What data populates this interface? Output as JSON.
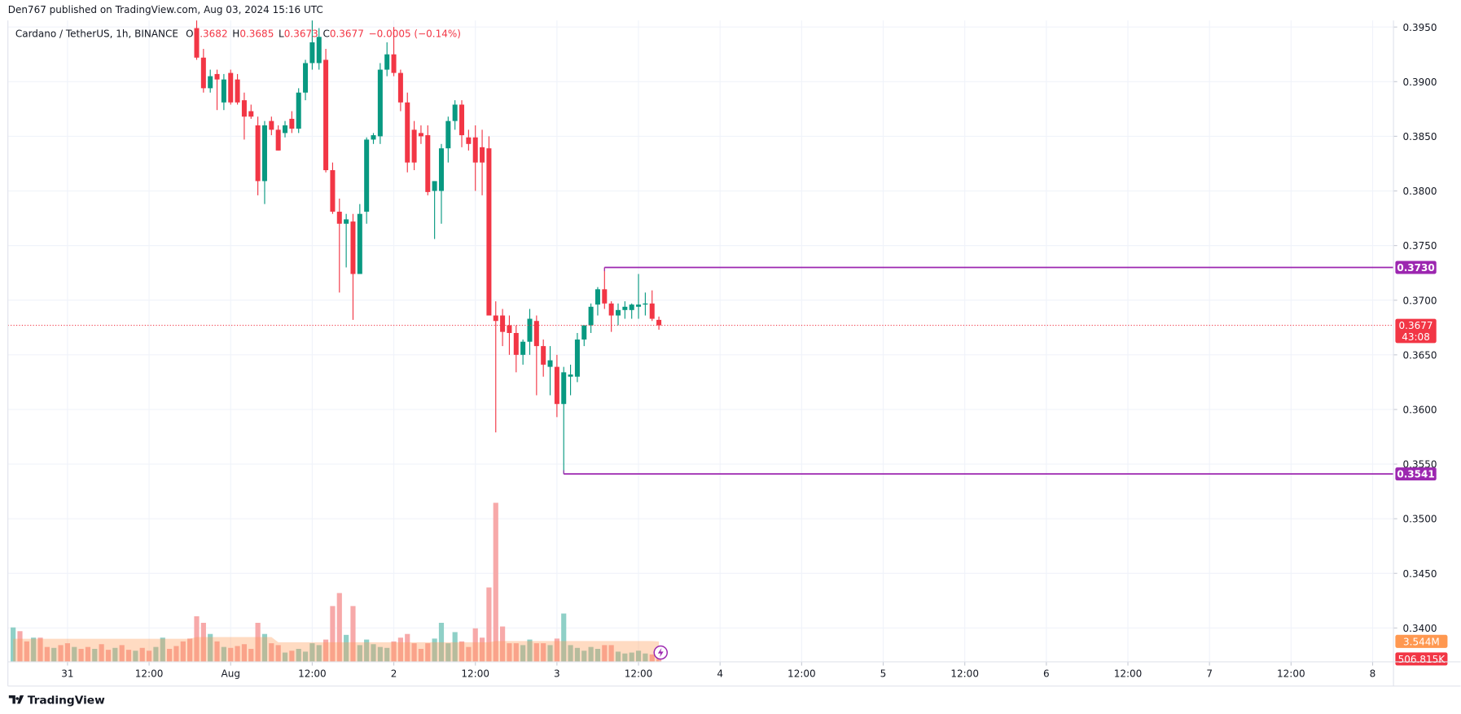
{
  "chart_data": {
    "type": "candlestick",
    "publisher": "Den767 published on TradingView.com, Aug 03, 2024 15:16 UTC",
    "symbol": "Cardano / TetherUS, 1h, BINANCE",
    "ohlc_legend": [
      {
        "key": "O",
        "value": "0.3682"
      },
      {
        "key": "H",
        "value": "0.3685"
      },
      {
        "key": "L",
        "value": "0.3673"
      },
      {
        "key": "C",
        "value": "0.3677"
      }
    ],
    "change": "−0.0005 (−0.14%)",
    "brand": "TradingView",
    "up_color": "#089981",
    "down_color": "#f23645",
    "grid": true,
    "xlim": [
      -8.77,
      195.07
    ],
    "xticks": [
      {
        "value": 0,
        "label": "31"
      },
      {
        "value": 12,
        "label": "12:00"
      },
      {
        "value": 24,
        "label": "Aug"
      },
      {
        "value": 36,
        "label": "12:00"
      },
      {
        "value": 48,
        "label": "2"
      },
      {
        "value": 60,
        "label": "12:00"
      },
      {
        "value": 72,
        "label": "3"
      },
      {
        "value": 84,
        "label": "12:00"
      },
      {
        "value": 96,
        "label": "4"
      },
      {
        "value": 108,
        "label": "12:00"
      },
      {
        "value": 120,
        "label": "5"
      },
      {
        "value": 132,
        "label": "12:00"
      },
      {
        "value": 144,
        "label": "6"
      },
      {
        "value": 156,
        "label": "12:00"
      },
      {
        "value": 168,
        "label": "7"
      },
      {
        "value": 180,
        "label": "12:00"
      },
      {
        "value": 192,
        "label": "8"
      }
    ],
    "ylim": [
      0.3369,
      0.3956
    ],
    "yticks": [
      {
        "value": 0.395,
        "label": "0.3950"
      },
      {
        "value": 0.39,
        "label": "0.3900"
      },
      {
        "value": 0.385,
        "label": "0.3850"
      },
      {
        "value": 0.38,
        "label": "0.3800"
      },
      {
        "value": 0.375,
        "label": "0.3750"
      },
      {
        "value": 0.37,
        "label": "0.3700"
      },
      {
        "value": 0.365,
        "label": "0.3650"
      },
      {
        "value": 0.36,
        "label": "0.3600"
      },
      {
        "value": 0.355,
        "label": "0.3550"
      },
      {
        "value": 0.35,
        "label": "0.3500"
      },
      {
        "value": 0.345,
        "label": "0.3450"
      },
      {
        "value": 0.34,
        "label": "0.3400"
      }
    ],
    "x": [
      19,
      20,
      21,
      22,
      23,
      24,
      25,
      26,
      27,
      28,
      29,
      30,
      31,
      32,
      33,
      34,
      35,
      36,
      37,
      38,
      39,
      40,
      41,
      42,
      43,
      44,
      45,
      46,
      47,
      48,
      49,
      50,
      51,
      52,
      53,
      54,
      55,
      56,
      57,
      58,
      59,
      60,
      61,
      62,
      63,
      64,
      65,
      66,
      67,
      68,
      69,
      70,
      71,
      72,
      73,
      74,
      75,
      76,
      77,
      78,
      79,
      80,
      81,
      82,
      83,
      84,
      85,
      86,
      87
    ],
    "open": [
      0.3949,
      0.3922,
      0.3894,
      0.3907,
      0.3881,
      0.3908,
      0.3902,
      0.3883,
      0.3873,
      0.386,
      0.3809,
      0.3864,
      0.3856,
      0.3853,
      0.3866,
      0.3857,
      0.389,
      0.3917,
      0.3917,
      0.392,
      0.3819,
      0.3781,
      0.377,
      0.3772,
      0.3724,
      0.3781,
      0.3847,
      0.385,
      0.3911,
      0.3925,
      0.3908,
      0.3881,
      0.3856,
      0.3853,
      0.3851,
      0.38,
      0.38,
      0.3839,
      0.3864,
      0.3879,
      0.3849,
      0.3849,
      0.384,
      0.3839,
      0.3686,
      0.3686,
      0.3677,
      0.367,
      0.365,
      0.3662,
      0.3681,
      0.3658,
      0.3639,
      0.3639,
      0.3605,
      0.363,
      0.363,
      0.3664,
      0.3677,
      0.3696,
      0.371,
      0.3697,
      0.3686,
      0.3691,
      0.3691,
      0.3694,
      0.3696,
      0.3697,
      0.3682
    ],
    "high": [
      0.3956,
      0.393,
      0.3911,
      0.3911,
      0.3907,
      0.3911,
      0.3907,
      0.389,
      0.3879,
      0.3868,
      0.3864,
      0.3868,
      0.386,
      0.3864,
      0.3873,
      0.3894,
      0.392,
      0.3956,
      0.3949,
      0.393,
      0.3826,
      0.3793,
      0.3779,
      0.3779,
      0.3788,
      0.3849,
      0.3853,
      0.3917,
      0.3936,
      0.395,
      0.3911,
      0.389,
      0.3864,
      0.386,
      0.386,
      0.3809,
      0.3843,
      0.3868,
      0.3883,
      0.3883,
      0.3856,
      0.386,
      0.3856,
      0.385,
      0.3699,
      0.3692,
      0.3686,
      0.3677,
      0.3664,
      0.3692,
      0.3686,
      0.3664,
      0.3658,
      0.365,
      0.3639,
      0.3641,
      0.367,
      0.3677,
      0.3697,
      0.3712,
      0.373,
      0.3699,
      0.3697,
      0.3699,
      0.3697,
      0.3724,
      0.3707,
      0.3709,
      0.3685
    ],
    "low": [
      0.392,
      0.389,
      0.389,
      0.3874,
      0.3874,
      0.3879,
      0.3879,
      0.3847,
      0.3866,
      0.3796,
      0.3788,
      0.3851,
      0.3837,
      0.3849,
      0.3853,
      0.3853,
      0.3883,
      0.3911,
      0.3911,
      0.3817,
      0.3779,
      0.3707,
      0.373,
      0.3682,
      0.3724,
      0.377,
      0.3843,
      0.3843,
      0.3905,
      0.3905,
      0.3873,
      0.3817,
      0.3819,
      0.3843,
      0.3796,
      0.3756,
      0.377,
      0.3826,
      0.3856,
      0.384,
      0.3837,
      0.38,
      0.3796,
      0.3686,
      0.3579,
      0.3658,
      0.365,
      0.3634,
      0.3641,
      0.365,
      0.3613,
      0.363,
      0.3613,
      0.3593,
      0.3541,
      0.3613,
      0.3625,
      0.3658,
      0.367,
      0.3686,
      0.3692,
      0.3671,
      0.3677,
      0.3683,
      0.3683,
      0.3683,
      0.3686,
      0.3681,
      0.3673
    ],
    "close": [
      0.3922,
      0.3894,
      0.3905,
      0.3902,
      0.3902,
      0.3881,
      0.3881,
      0.3868,
      0.3868,
      0.3809,
      0.386,
      0.3856,
      0.3837,
      0.386,
      0.3857,
      0.389,
      0.3917,
      0.3936,
      0.3941,
      0.3819,
      0.3781,
      0.377,
      0.3774,
      0.3724,
      0.3779,
      0.3847,
      0.3851,
      0.3911,
      0.3925,
      0.3908,
      0.3881,
      0.3826,
      0.3826,
      0.385,
      0.3799,
      0.3809,
      0.3839,
      0.3864,
      0.3879,
      0.3851,
      0.3843,
      0.3826,
      0.3826,
      0.3686,
      0.3681,
      0.3671,
      0.367,
      0.365,
      0.3662,
      0.3683,
      0.3658,
      0.3641,
      0.3645,
      0.3605,
      0.3634,
      0.3632,
      0.3664,
      0.3677,
      0.3694,
      0.371,
      0.3697,
      0.3686,
      0.3691,
      0.3694,
      0.3696,
      0.3696,
      0.3697,
      0.3683,
      0.3677
    ],
    "levels": [
      {
        "value": 0.373,
        "label": "0.3730",
        "from_x": 79,
        "color": "#9c27b0"
      },
      {
        "value": 0.3541,
        "label": "0.3541",
        "from_x": 73,
        "color": "#9c27b0"
      }
    ],
    "last_price": {
      "value": 0.3677,
      "label": "0.3677",
      "countdown": "43:08",
      "color": "#f23645"
    },
    "volume": {
      "ylim": [
        0,
        111000000
      ],
      "x": [
        -8,
        -7,
        -6,
        -5,
        -4,
        -3,
        -2,
        -1,
        0,
        1,
        2,
        3,
        4,
        5,
        6,
        7,
        8,
        9,
        10,
        11,
        12,
        13,
        14,
        15,
        16,
        17,
        18,
        19,
        20,
        21,
        22,
        23,
        24,
        25,
        26,
        27,
        28,
        29,
        30,
        31,
        32,
        33,
        34,
        35,
        36,
        37,
        38,
        39,
        40,
        41,
        42,
        43,
        44,
        45,
        46,
        47,
        48,
        49,
        50,
        51,
        52,
        53,
        54,
        55,
        56,
        57,
        58,
        59,
        60,
        61,
        62,
        63,
        64,
        65,
        66,
        67,
        68,
        69,
        70,
        71,
        72,
        73,
        74,
        75,
        76,
        77,
        78,
        79,
        80,
        81,
        82,
        83,
        84,
        85,
        86,
        87
      ],
      "values": [
        5960000,
        5310000,
        3540000,
        4190000,
        4190000,
        2580000,
        2420000,
        2900000,
        3220000,
        2580000,
        2250000,
        2580000,
        2250000,
        3060000,
        2090000,
        2420000,
        2900000,
        2090000,
        1930000,
        2420000,
        1930000,
        2580000,
        4190000,
        2250000,
        2740000,
        3540000,
        4030000,
        7890000,
        6760000,
        4830000,
        3540000,
        2580000,
        2420000,
        2740000,
        3060000,
        2250000,
        6760000,
        4830000,
        3220000,
        2900000,
        1610000,
        1930000,
        2250000,
        1770000,
        3220000,
        2900000,
        3860000,
        9660000,
        11910000,
        4670000,
        9660000,
        2900000,
        3860000,
        3060000,
        2580000,
        2420000,
        3540000,
        4190000,
        4830000,
        3220000,
        2250000,
        3220000,
        4030000,
        6760000,
        3220000,
        5150000,
        3540000,
        2580000,
        5800000,
        4190000,
        12880000,
        27530000,
        6120000,
        3220000,
        3220000,
        2900000,
        3860000,
        3220000,
        3220000,
        2900000,
        4030000,
        8370000,
        2900000,
        2420000,
        1930000,
        2580000,
        2250000,
        2900000,
        2900000,
        1770000,
        1450000,
        1610000,
        1930000,
        1450000,
        1290000,
        506815
      ],
      "direction": [
        "up",
        "down",
        "down",
        "up",
        "down",
        "down",
        "up",
        "down",
        "down",
        "up",
        "down",
        "down",
        "up",
        "down",
        "down",
        "up",
        "down",
        "down",
        "up",
        "down",
        "down",
        "up",
        "up",
        "down",
        "down",
        "down",
        "down",
        "down",
        "down",
        "up",
        "down",
        "up",
        "down",
        "down",
        "down",
        "down",
        "down",
        "up",
        "down",
        "down",
        "up",
        "down",
        "up",
        "up",
        "up",
        "up",
        "down",
        "down",
        "down",
        "up",
        "down",
        "up",
        "up",
        "up",
        "up",
        "up",
        "down",
        "down",
        "down",
        "down",
        "down",
        "down",
        "up",
        "up",
        "up",
        "up",
        "down",
        "down",
        "down",
        "down",
        "down",
        "down",
        "down",
        "down",
        "down",
        "up",
        "up",
        "down",
        "down",
        "up",
        "down",
        "up",
        "up",
        "up",
        "up",
        "up",
        "up",
        "down",
        "down",
        "up",
        "up",
        "up",
        "up",
        "up",
        "down",
        "down"
      ],
      "up_color": "#8fd0c7",
      "down_color": "#f7a9a9",
      "ma_values": [
        4000000,
        4000000,
        4000000,
        4000000,
        4000000,
        4000000,
        4000000,
        4000000,
        4000000,
        4000000,
        4000000,
        4000000,
        4000000,
        4000000,
        4000000,
        4000000,
        4000000,
        4000000,
        4000000,
        4000000,
        4000000,
        4000000,
        4000000,
        4000000,
        4000000,
        4000000,
        4000000,
        4300000,
        4300000,
        4300000,
        4300000,
        4300000,
        4300000,
        4300000,
        4300000,
        4300000,
        4300000,
        4300000,
        4300000,
        3400000,
        3400000,
        3400000,
        3400000,
        3400000,
        3400000,
        3400000,
        3400000,
        3400000,
        3400000,
        3400000,
        3400000,
        3400000,
        3400000,
        3400000,
        3400000,
        3400000,
        3400000,
        3400000,
        3400000,
        3400000,
        3400000,
        3400000,
        3400000,
        3400000,
        3400000,
        3400000,
        3400000,
        3400000,
        3400000,
        3400000,
        3400000,
        3600000,
        3600000,
        3600000,
        3600000,
        3600000,
        3600000,
        3600000,
        3600000,
        3600000,
        3600000,
        3600000,
        3600000,
        3600000,
        3600000,
        3600000,
        3600000,
        3600000,
        3600000,
        3600000,
        3600000,
        3600000,
        3600000,
        3600000,
        3600000,
        3544000
      ],
      "ma_color": "#ff9850",
      "tags": [
        {
          "value": 3544000,
          "label": "3.544M",
          "color": "#ff9850"
        },
        {
          "value": 506815,
          "label": "506.815K",
          "color": "#f23645"
        }
      ]
    }
  }
}
